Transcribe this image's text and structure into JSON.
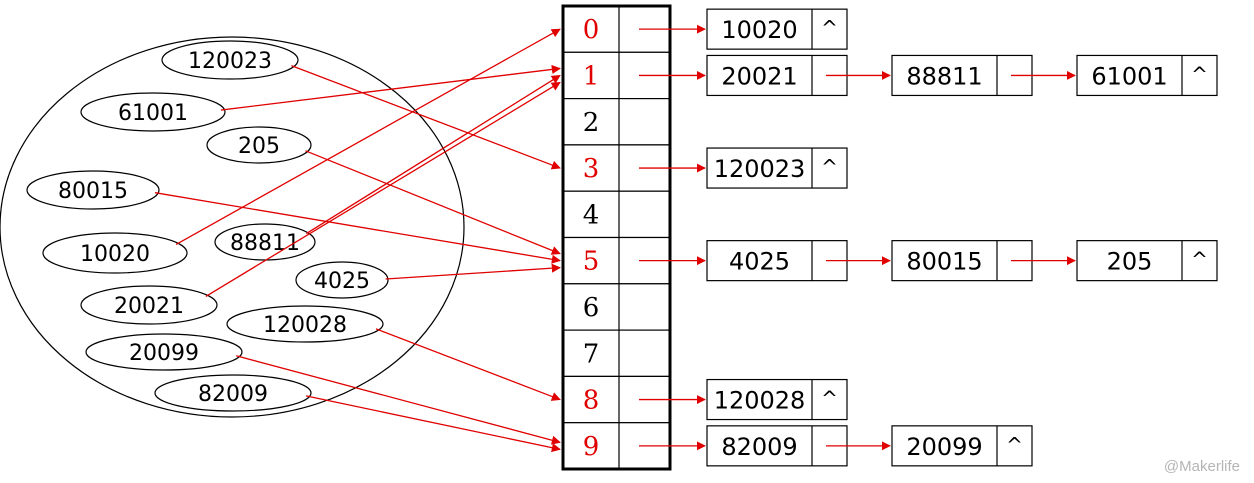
{
  "keys": [
    "120023",
    "61001",
    "205",
    "80015",
    "10020",
    "88811",
    "4025",
    "20021",
    "120028",
    "20099",
    "82009"
  ],
  "table_indices": [
    "0",
    "1",
    "2",
    "3",
    "4",
    "5",
    "6",
    "7",
    "8",
    "9"
  ],
  "buckets": [
    {
      "index": 0,
      "nodes": [
        "10020"
      ]
    },
    {
      "index": 1,
      "nodes": [
        "20021",
        "88811",
        "61001"
      ]
    },
    {
      "index": 3,
      "nodes": [
        "120023"
      ]
    },
    {
      "index": 5,
      "nodes": [
        "4025",
        "80015",
        "205"
      ]
    },
    {
      "index": 8,
      "nodes": [
        "120028"
      ]
    },
    {
      "index": 9,
      "nodes": [
        "82009",
        "20099"
      ]
    }
  ],
  "mappings": [
    {
      "key": "120023",
      "index": 3
    },
    {
      "key": "61001",
      "index": 1
    },
    {
      "key": "205",
      "index": 5
    },
    {
      "key": "80015",
      "index": 5
    },
    {
      "key": "10020",
      "index": 0
    },
    {
      "key": "88811",
      "index": 1
    },
    {
      "key": "4025",
      "index": 5
    },
    {
      "key": "20021",
      "index": 1
    },
    {
      "key": "120028",
      "index": 8
    },
    {
      "key": "20099",
      "index": 9
    },
    {
      "key": "82009",
      "index": 9
    }
  ],
  "null_symbol": "^",
  "colors": {
    "highlight": "#e00000",
    "arrow": "#e00000",
    "line": "#000000"
  },
  "watermark": "@Makerlife"
}
